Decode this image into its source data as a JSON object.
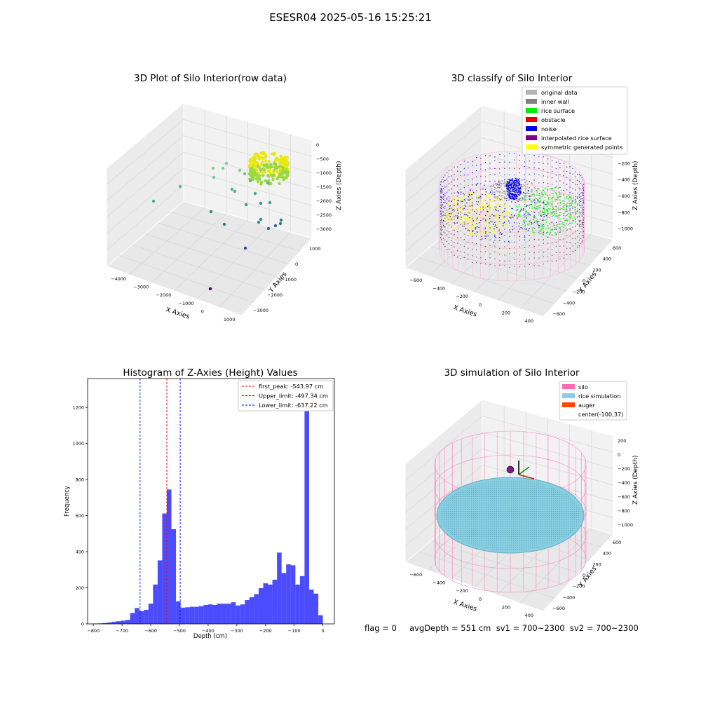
{
  "figure": {
    "suptitle": "ESESR04 2025-05-16 15:25:21",
    "footer_text": "flag = 0     avgDepth = 551 cm  sv1 = 700~2300  sv2 = 700~2300"
  },
  "panels": {
    "raw": {
      "title": "3D Plot of Silo Interior(row data)",
      "xlabel": "X Axies",
      "ylabel": "Y Axies",
      "zlabel": "Z Axies (Depth)",
      "xticks": [
        "−4000",
        "−3000",
        "−2000",
        "−1000",
        "0",
        "1000"
      ],
      "yticks": [
        "1000",
        "0",
        "−1000",
        "−2000",
        "−3000"
      ],
      "zticks": [
        "0",
        "−500",
        "−1000",
        "−1500",
        "−2000",
        "−2500",
        "−3000"
      ]
    },
    "classify": {
      "title": "3D classify of Silo Interior",
      "xlabel": "X Axies",
      "ylabel": "Y Axies",
      "zlabel": "Z Axies (Depth)",
      "xticks": [
        "−600",
        "−400",
        "−200",
        "0",
        "200",
        "400"
      ],
      "yticks": [
        "600",
        "400",
        "200",
        "0",
        "−200",
        "−400",
        "−600"
      ],
      "zticks": [
        "0",
        "−200",
        "−400",
        "−600",
        "−800",
        "−1000"
      ],
      "legend": [
        {
          "label": "original data",
          "color": "#b3b3b3"
        },
        {
          "label": "inner wall",
          "color": "#808080"
        },
        {
          "label": "rice surface",
          "color": "#00ee00"
        },
        {
          "label": "obstacle",
          "color": "#ee0000"
        },
        {
          "label": "noise",
          "color": "#0000ee"
        },
        {
          "label": "interpolated rice surface",
          "color": "#800080"
        },
        {
          "label": "symmetric generated points",
          "color": "#ffff00"
        }
      ]
    },
    "simulation": {
      "title": "3D simulation of Silo Interior",
      "xlabel": "X Axies",
      "ylabel": "Y Axies",
      "zlabel": "Z Axies (Depth)",
      "xticks": [
        "−600",
        "−400",
        "−200",
        "0",
        "200",
        "400"
      ],
      "yticks": [
        "600",
        "400",
        "200",
        "0",
        "−200",
        "−400",
        "−600"
      ],
      "zticks": [
        "200",
        "0",
        "−200",
        "−400",
        "−600",
        "−800",
        "−1000"
      ],
      "legend": [
        {
          "label": "silo",
          "color": "#ff69b4"
        },
        {
          "label": "rice simulation",
          "color": "#87ceeb"
        },
        {
          "label": "auger",
          "color": "#ff4500"
        },
        {
          "label": "center(-100,37)",
          "color": ""
        }
      ]
    }
  },
  "chart_data": {
    "type": "bar",
    "title": "Histogram of Z-Axies (Height) Values",
    "xlabel": "Depth (cm)",
    "ylabel": "Frequency",
    "xlim": [
      -820,
      40
    ],
    "ylim": [
      0,
      1360
    ],
    "xticks": [
      -800,
      -700,
      -600,
      -500,
      -400,
      -300,
      -200,
      -100,
      0
    ],
    "yticks": [
      0,
      200,
      400,
      600,
      800,
      1000,
      1200
    ],
    "bar_color": "#0000ff",
    "bin_width": 16,
    "bin_starts": [
      -800,
      -784,
      -768,
      -752,
      -736,
      -720,
      -704,
      -688,
      -672,
      -656,
      -640,
      -624,
      -608,
      -592,
      -576,
      -560,
      -544,
      -528,
      -512,
      -496,
      -480,
      -464,
      -448,
      -432,
      -416,
      -400,
      -384,
      -368,
      -352,
      -336,
      -320,
      -304,
      -288,
      -272,
      -256,
      -240,
      -224,
      -208,
      -192,
      -176,
      -160,
      -144,
      -128,
      -112,
      -96,
      -80,
      -64,
      -48,
      -32,
      -16
    ],
    "counts": [
      2,
      3,
      5,
      8,
      12,
      15,
      18,
      22,
      60,
      88,
      70,
      78,
      112,
      218,
      352,
      612,
      745,
      525,
      125,
      90,
      92,
      95,
      95,
      98,
      105,
      108,
      105,
      112,
      112,
      112,
      120,
      102,
      108,
      132,
      148,
      165,
      198,
      225,
      218,
      245,
      395,
      282,
      330,
      325,
      218,
      265,
      1280,
      190,
      168,
      48
    ],
    "vlines": [
      {
        "x": -543.97,
        "label": "first_peak: -543.97 cm",
        "color": "#ff0000"
      },
      {
        "x": -497.34,
        "label": "Upper_limit: -497.34 cm",
        "color": "#0000ff"
      },
      {
        "x": -637.22,
        "label": "Lower_limit: -637.22 cm",
        "color": "#0000ff"
      }
    ],
    "legend_position": "upper right"
  }
}
